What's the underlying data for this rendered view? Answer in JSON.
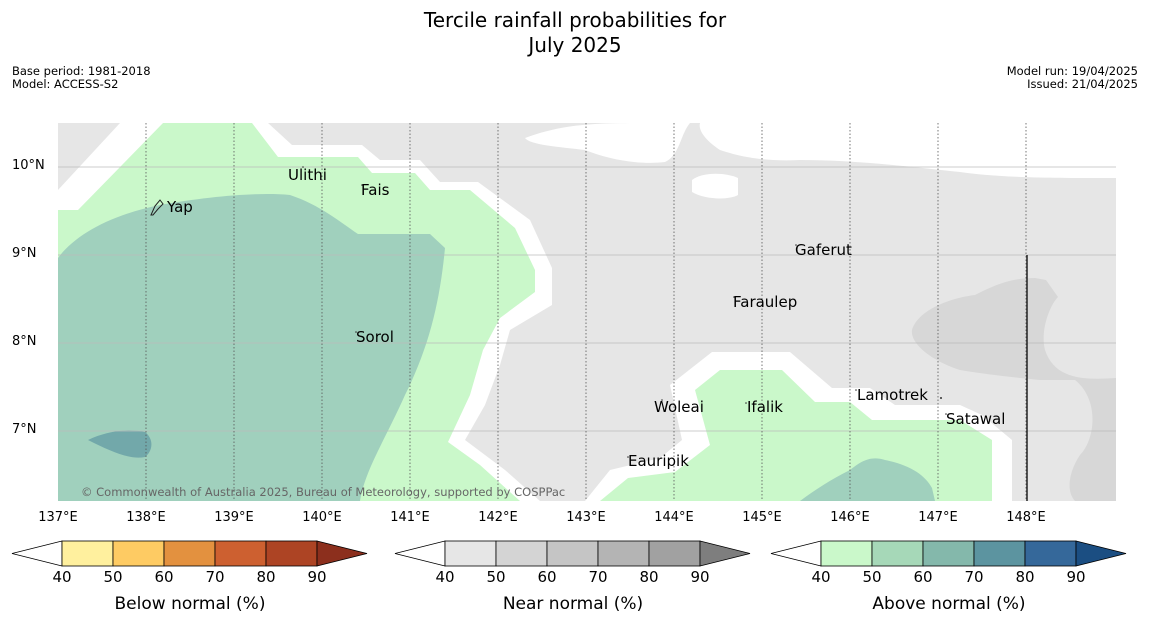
{
  "header": {
    "title_line1": "Tercile rainfall probabilities for",
    "title_line2": "July 2025",
    "base_period": "Base period: 1981-2018",
    "model": "Model: ACCESS-S2",
    "model_run": "Model run: 19/04/2025",
    "issued": "Issued: 21/04/2025"
  },
  "map": {
    "lon_labels": [
      "137°E",
      "138°E",
      "139°E",
      "140°E",
      "141°E",
      "142°E",
      "143°E",
      "144°E",
      "145°E",
      "146°E",
      "147°E",
      "148°E"
    ],
    "lat_labels": [
      "10°N",
      "9°N",
      "8°N",
      "7°N"
    ],
    "places": [
      "Yap",
      "Ulithi",
      "Fais",
      "Sorol",
      "Gaferut",
      "Faraulep",
      "Woleai",
      "Ifalik",
      "Eauripik",
      "Lamotrek",
      "Satawal"
    ],
    "copyright": "© Commonwealth of Australia 2025, Bureau of Meteorology, supported by COSPPac"
  },
  "colorbars": [
    {
      "title": "Below normal (%)",
      "ticks": [
        "40",
        "50",
        "60",
        "70",
        "80",
        "90"
      ],
      "colors": [
        "#fff09e",
        "#fecb63",
        "#e3913f",
        "#cd6030",
        "#ad4424",
        "#8c2f1d"
      ]
    },
    {
      "title": "Near normal (%)",
      "ticks": [
        "40",
        "50",
        "60",
        "70",
        "80",
        "90"
      ],
      "colors": [
        "#e6e6e6",
        "#d4d4d4",
        "#c5c5c5",
        "#b4b4b4",
        "#a1a1a1",
        "#7e7e7e"
      ]
    },
    {
      "title": "Above normal (%)",
      "ticks": [
        "40",
        "50",
        "60",
        "70",
        "80",
        "90"
      ],
      "colors": [
        "#caf8ca",
        "#a6d8b8",
        "#84b8ab",
        "#5c94a0",
        "#35689a",
        "#1b4e82"
      ]
    }
  ],
  "colors": {
    "near_normal_40": "#e6e6e6",
    "near_normal_50": "#d7d7d7",
    "above_normal_40": "#caf8ca",
    "above_normal_50": "#a0d0bd",
    "above_normal_60": "#72a8aa"
  }
}
